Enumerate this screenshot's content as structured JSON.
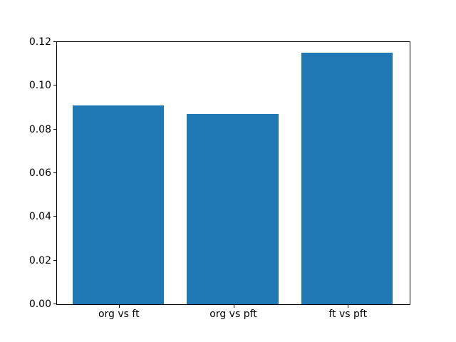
{
  "figure": {
    "background_color": "#ffffff",
    "spine_color": "#000000",
    "tick_color": "#000000",
    "text_color": "#000000"
  },
  "chart_data": {
    "type": "bar",
    "title": "",
    "xlabel": "",
    "ylabel": "",
    "categories": [
      "org vs ft",
      "org vs pft",
      "ft vs pft"
    ],
    "values": [
      0.091,
      0.087,
      0.115
    ],
    "bar_color": "#1f77b4",
    "bar_width_fraction": 0.8,
    "ylim": [
      0,
      0.12
    ],
    "xlim": [
      -0.54,
      2.54
    ],
    "yticks": [
      0.0,
      0.02,
      0.04,
      0.06,
      0.08,
      0.1,
      0.12
    ],
    "ytick_labels": [
      "0.00",
      "0.02",
      "0.04",
      "0.06",
      "0.08",
      "0.10",
      "0.12"
    ],
    "grid": false,
    "legend_position": "none"
  }
}
